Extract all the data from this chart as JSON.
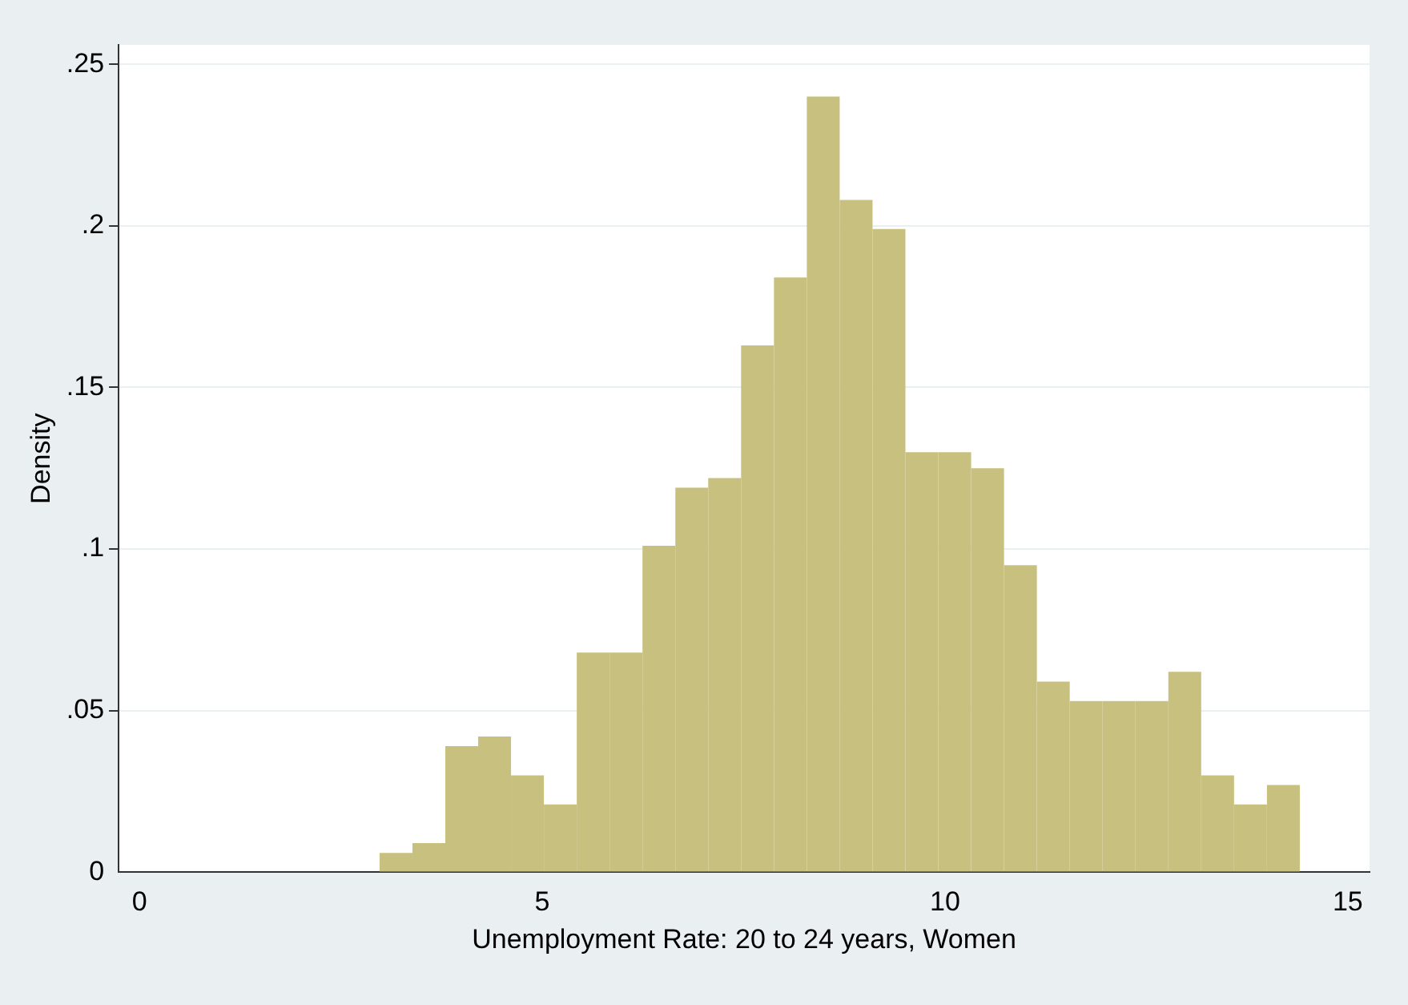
{
  "chart_data": {
    "type": "histogram",
    "xlabel": "Unemployment Rate: 20 to 24 years, Women",
    "ylabel": "Density",
    "color": "#c8c07e",
    "bins": [
      2.98,
      3.388,
      3.796,
      4.204,
      4.612,
      5.02,
      5.428,
      5.836,
      6.244,
      6.652,
      7.06,
      7.468,
      7.876,
      8.284,
      8.692,
      9.1,
      9.508,
      9.916,
      10.324,
      10.732,
      11.14,
      11.548,
      11.956,
      12.364,
      12.772,
      13.18,
      13.588,
      13.996,
      14.404
    ],
    "values": [
      0.006,
      0.009,
      0.039,
      0.042,
      0.03,
      0.021,
      0.068,
      0.068,
      0.101,
      0.119,
      0.122,
      0.163,
      0.184,
      0.24,
      0.208,
      0.199,
      0.13,
      0.13,
      0.125,
      0.095,
      0.059,
      0.053,
      0.053,
      0.053,
      0.062,
      0.03,
      0.021,
      0.027
    ],
    "xlim": [
      -0.26,
      15.27
    ],
    "xticks": [
      0,
      5,
      10,
      15
    ],
    "ylim": [
      0,
      0.256
    ],
    "yticks": [
      {
        "value": 0,
        "label": "0"
      },
      {
        "value": 0.05,
        "label": ".05"
      },
      {
        "value": 0.1,
        "label": ".1"
      },
      {
        "value": 0.15,
        "label": ".15"
      },
      {
        "value": 0.2,
        "label": ".2"
      },
      {
        "value": 0.25,
        "label": ".25"
      }
    ],
    "grid": "y",
    "legend": false
  }
}
